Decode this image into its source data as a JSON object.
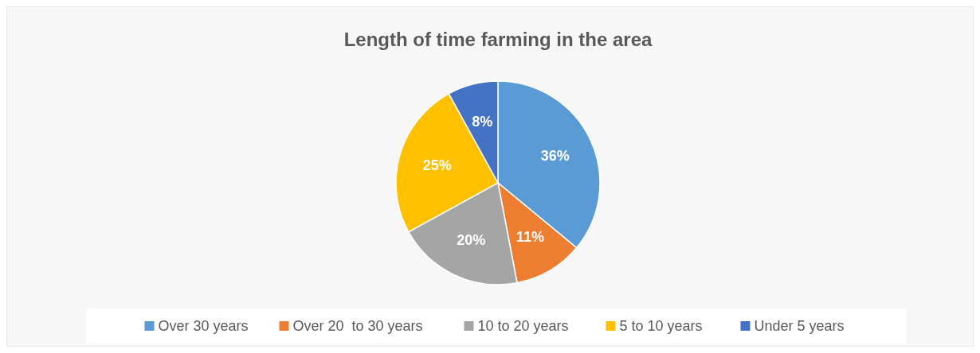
{
  "chart_data": {
    "type": "pie",
    "title": "Length of time farming in the area",
    "categories": [
      "Over 30 years",
      "Over 20  to 30 years",
      "10 to 20 years",
      "5 to 10 years",
      "Under 5 years"
    ],
    "values": [
      36,
      11,
      20,
      25,
      8
    ],
    "colors": [
      "#5b9bd5",
      "#ed7d31",
      "#a5a5a5",
      "#ffc000",
      "#4472c4"
    ],
    "value_labels": [
      "36%",
      "11%",
      "20%",
      "25%",
      "8%"
    ],
    "legend": "bottom"
  }
}
